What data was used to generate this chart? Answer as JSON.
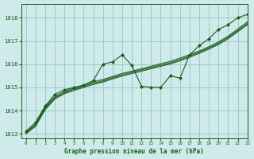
{
  "bg_color": "#ceeaea",
  "grid_color": "#9ec8c8",
  "line_color": "#1a5c1a",
  "title": "Graphe pression niveau de la mer (hPa)",
  "xlim": [
    -0.5,
    23
  ],
  "ylim": [
    1012.8,
    1018.6
  ],
  "yticks": [
    1013,
    1014,
    1015,
    1016,
    1017,
    1018
  ],
  "xticks": [
    0,
    1,
    2,
    3,
    4,
    5,
    6,
    7,
    8,
    9,
    10,
    11,
    12,
    13,
    14,
    15,
    16,
    17,
    18,
    19,
    20,
    21,
    22,
    23
  ],
  "series_main": [
    1013.1,
    1013.5,
    1014.2,
    1014.7,
    1014.9,
    1015.0,
    1015.1,
    1015.3,
    1016.0,
    1016.1,
    1016.4,
    1015.95,
    1015.05,
    1015.0,
    1015.0,
    1015.5,
    1015.4,
    1016.4,
    1016.8,
    1017.1,
    1017.5,
    1017.7,
    1018.0,
    1018.15
  ],
  "series_smooth": [
    [
      1013.05,
      1013.38,
      1014.1,
      1014.55,
      1014.78,
      1014.92,
      1015.05,
      1015.18,
      1015.28,
      1015.42,
      1015.54,
      1015.65,
      1015.75,
      1015.86,
      1015.96,
      1016.06,
      1016.2,
      1016.35,
      1016.52,
      1016.7,
      1016.9,
      1017.15,
      1017.45,
      1017.75
    ],
    [
      1013.0,
      1013.32,
      1014.04,
      1014.5,
      1014.73,
      1014.87,
      1015.0,
      1015.13,
      1015.23,
      1015.37,
      1015.49,
      1015.6,
      1015.7,
      1015.81,
      1015.91,
      1016.01,
      1016.15,
      1016.3,
      1016.47,
      1016.65,
      1016.85,
      1017.1,
      1017.4,
      1017.7
    ],
    [
      1013.05,
      1013.42,
      1014.16,
      1014.6,
      1014.83,
      1014.97,
      1015.1,
      1015.24,
      1015.34,
      1015.47,
      1015.6,
      1015.7,
      1015.8,
      1015.91,
      1016.02,
      1016.12,
      1016.26,
      1016.41,
      1016.57,
      1016.75,
      1016.96,
      1017.21,
      1017.51,
      1017.82
    ]
  ]
}
